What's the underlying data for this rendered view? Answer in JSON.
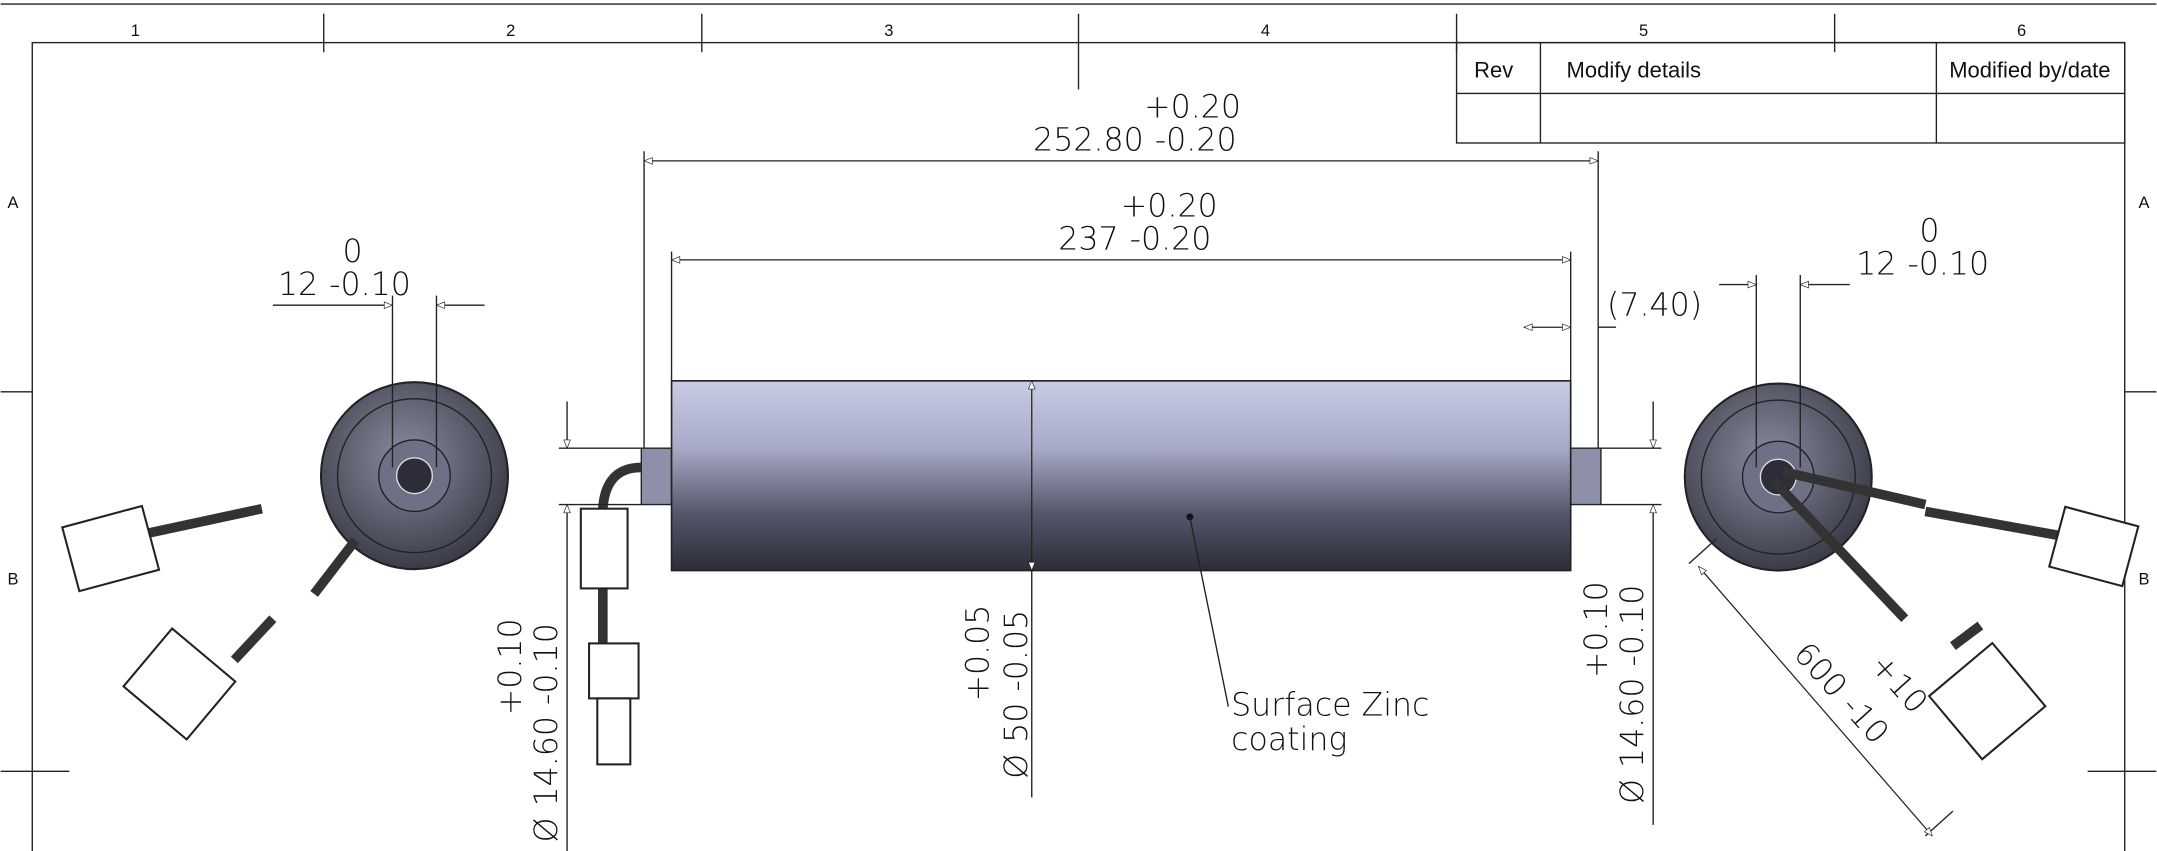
{
  "border": {
    "columns": [
      "1",
      "2",
      "3",
      "4",
      "5",
      "6"
    ],
    "rows": [
      "A",
      "B"
    ]
  },
  "revision_table": {
    "headers": [
      "Rev",
      "Modify details",
      "Modified by/date"
    ]
  },
  "dimensions": {
    "overall_length": {
      "nominal": "252.80",
      "upper": "+0.20",
      "lower": "-0.20"
    },
    "tube_length": {
      "nominal": "237",
      "upper": "+0.20",
      "lower": "-0.20"
    },
    "shaft_extension": "(7.40)",
    "left_shaft_flat": {
      "nominal": "12",
      "upper": "0",
      "lower": "-0.10"
    },
    "right_shaft_flat": {
      "nominal": "12",
      "upper": "0",
      "lower": "-0.10"
    },
    "left_shaft_diameter": {
      "symbol": "Ø",
      "nominal": "14.60",
      "upper": "+0.10",
      "lower": "-0.10"
    },
    "tube_diameter": {
      "symbol": "Ø",
      "nominal": "50",
      "upper": "+0.05",
      "lower": "-0.05"
    },
    "right_shaft_diameter": {
      "symbol": "Ø",
      "nominal": "14.60",
      "upper": "+0.10",
      "lower": "-0.10"
    },
    "cable_length": {
      "nominal": "600",
      "upper": "+10",
      "lower": "-10"
    }
  },
  "note": {
    "lines": [
      "Surface Zinc",
      "coating"
    ]
  }
}
